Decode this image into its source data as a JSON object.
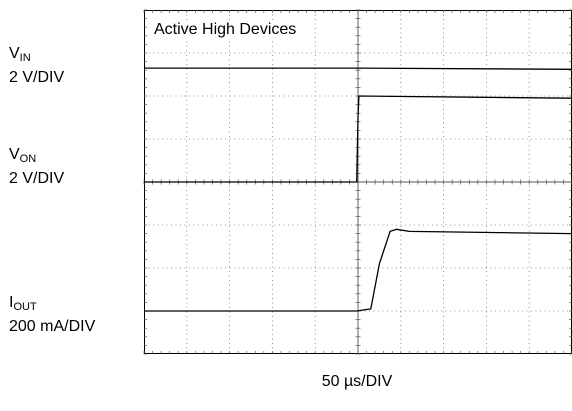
{
  "chart_data": {
    "type": "line",
    "annotation": "Active High Devices",
    "x_scale_label": "50 µs/DIV",
    "grid": true,
    "divisions": {
      "x": 10,
      "y": 8
    },
    "channels": [
      {
        "key": "vin",
        "name": "V",
        "sub": "IN",
        "scale": "2 V/DIV",
        "x": [
          0,
          5,
          10
        ],
        "y": [
          6.65,
          6.65,
          6.62
        ]
      },
      {
        "key": "von",
        "name": "V",
        "sub": "ON",
        "scale": "2 V/DIV",
        "x": [
          0,
          4.97,
          5.0,
          5.02,
          10
        ],
        "y": [
          4.0,
          4.0,
          5.5,
          6.0,
          5.95
        ]
      },
      {
        "key": "iout",
        "name": "I",
        "sub": "OUT",
        "scale": "200 mA/DIV",
        "x": [
          0,
          4.97,
          5.3,
          5.5,
          5.75,
          5.9,
          6.2,
          10
        ],
        "y": [
          1.0,
          1.0,
          1.05,
          2.1,
          2.85,
          2.9,
          2.85,
          2.8
        ]
      }
    ]
  }
}
